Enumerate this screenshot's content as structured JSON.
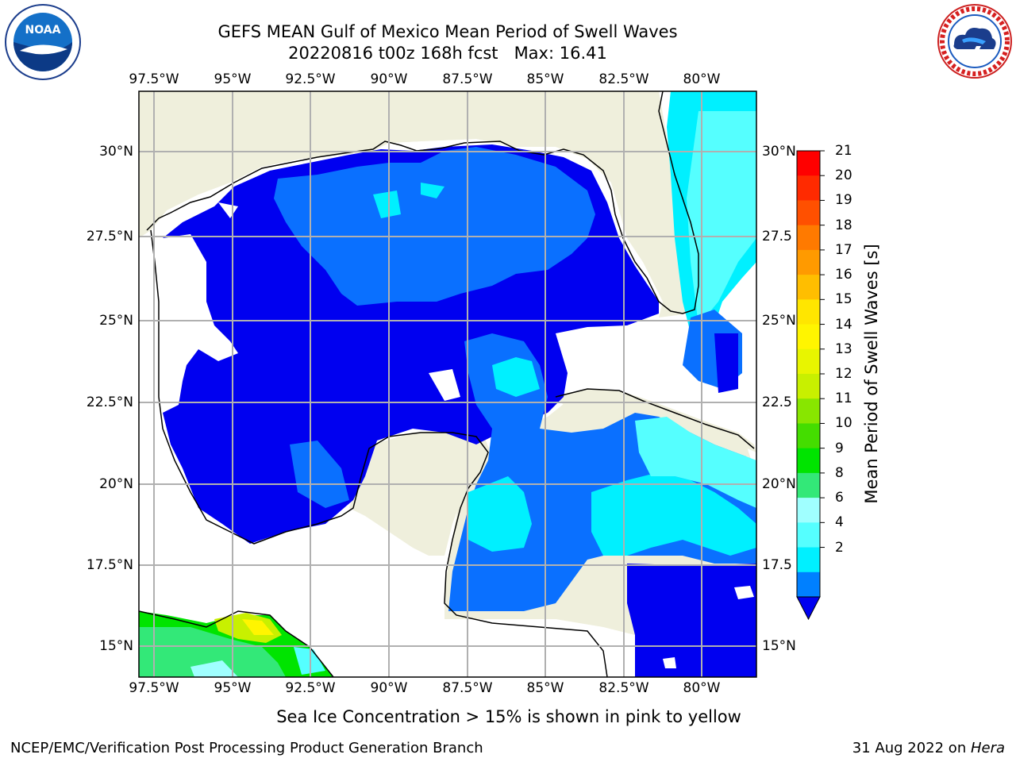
{
  "header": {
    "title_line1": "GEFS MEAN Gulf of Mexico Mean Period of Swell Waves",
    "title_line2": "20220816 t00z 168h fcst   Max: 16.41"
  },
  "logos": {
    "noaa": {
      "icon": "noaa-logo-icon",
      "text": "NOAA"
    },
    "nws": {
      "icon": "nws-logo-icon"
    }
  },
  "axes": {
    "longitude_ticks": [
      "97.5°W",
      "95°W",
      "92.5°W",
      "90°W",
      "87.5°W",
      "85°W",
      "82.5°W",
      "80°W"
    ],
    "latitude_ticks_left": [
      "30°N",
      "27.5°N",
      "25°N",
      "22.5°N",
      "20°N",
      "17.5°N",
      "15°N"
    ],
    "latitude_ticks_right": [
      "30°N",
      "27.5",
      "25°N",
      "22.5",
      "20°N",
      "17.5",
      "15°N"
    ]
  },
  "colorbar": {
    "label": "Mean Period of Swell Waves [s]",
    "ticks": [
      "21",
      "20",
      "19",
      "18",
      "17",
      "16",
      "15",
      "14",
      "13",
      "12",
      "11",
      "10",
      "9",
      "8",
      "6",
      "4",
      "2"
    ],
    "colors": [
      "#ff0000",
      "#ff2a00",
      "#ff5000",
      "#ff7a00",
      "#ff9a00",
      "#ffbe00",
      "#ffe600",
      "#fff500",
      "#e8f500",
      "#c8f000",
      "#88e600",
      "#44dd00",
      "#00e400",
      "#33e878",
      "#a0ffff",
      "#55ffff",
      "#00f0ff",
      "#0080ff"
    ]
  },
  "footer": {
    "note": "Sea Ice Concentration > 15% is shown in pink to yellow",
    "credit": "NCEP/EMC/Verification Post Processing Product Generation Branch",
    "date": "31 Aug 2022 on ",
    "machine": "Hera"
  }
}
